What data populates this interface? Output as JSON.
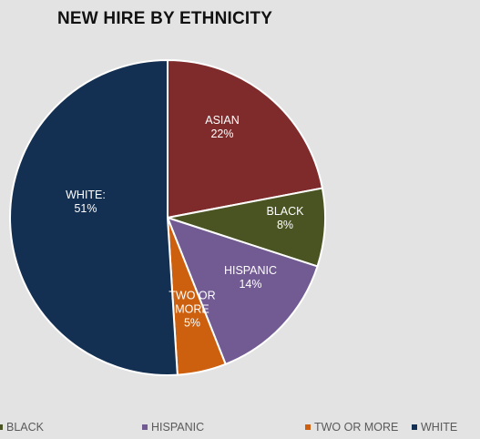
{
  "chart_data": {
    "type": "pie",
    "title": "NEW HIRE BY ETHNICITY",
    "slices": [
      {
        "name": "ASIAN",
        "value": 22,
        "label_line1": "ASIAN",
        "label_line2": "22%",
        "color": "#7f2b2b"
      },
      {
        "name": "BLACK",
        "value": 8,
        "label_line1": "BLACK",
        "label_line2": "8%",
        "color": "#4a5422"
      },
      {
        "name": "HISPANIC",
        "value": 14,
        "label_line1": "HISPANIC",
        "label_line2": "14%",
        "color": "#725a93"
      },
      {
        "name": "TWO OR MORE",
        "value": 5,
        "label_line1": "TWO OR",
        "label_line2": "MORE",
        "label_line3": "5%",
        "color": "#cc600f"
      },
      {
        "name": "WHITE",
        "value": 51,
        "label_line1": "WHITE:",
        "label_line2": "51%",
        "color": "#132f51"
      }
    ],
    "legend": [
      {
        "label": "BLACK",
        "color": "#4a5422"
      },
      {
        "label": "HISPANIC",
        "color": "#725a93"
      },
      {
        "label": "TWO OR MORE",
        "color": "#cc600f"
      },
      {
        "label": "WHITE",
        "color": "#132f51"
      }
    ],
    "legend_placement": "bottom"
  }
}
